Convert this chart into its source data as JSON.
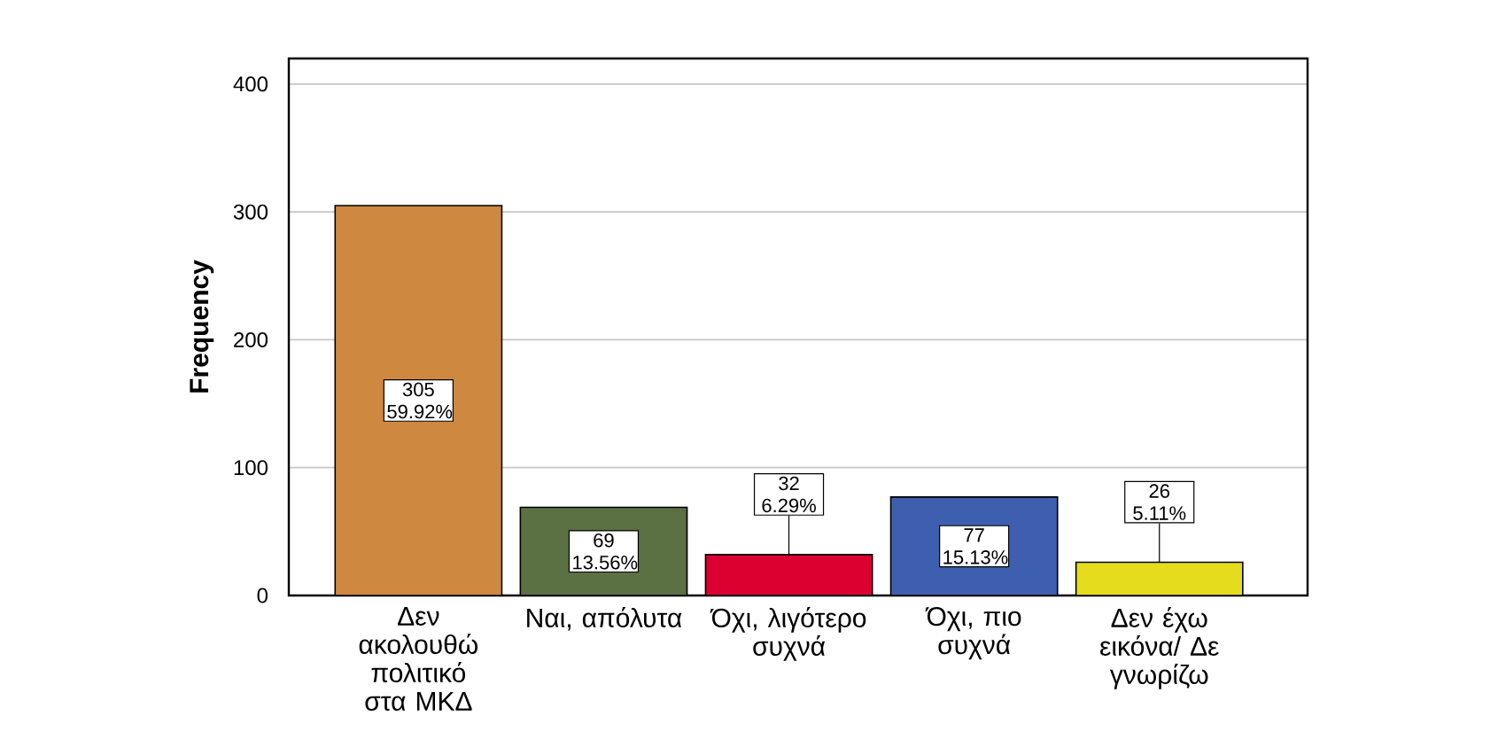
{
  "chart_data": {
    "type": "bar",
    "ylabel": "Frequency",
    "categories": [
      "Δεν ακολουθώ πολιτικό στα ΜΚΔ",
      "Ναι, απόλυτα",
      "Όχι, λιγότερο συχνά",
      "Όχι, πιο συχνά",
      "Δεν έχω εικόνα/ Δε γνωρίζω"
    ],
    "values": [
      305,
      69,
      32,
      77,
      26
    ],
    "value_labels": [
      "305 59.92%",
      "69 13.56%",
      "32 6.29%",
      "77 15.13%",
      "26 5.11%"
    ],
    "colors": [
      "#ce8840",
      "#5b7043",
      "#dc0030",
      "#3e5fb0",
      "#e5dc1d"
    ],
    "ylim": [
      0,
      420
    ],
    "yticks": [
      0,
      100,
      200,
      300,
      400
    ],
    "grid": "y"
  }
}
